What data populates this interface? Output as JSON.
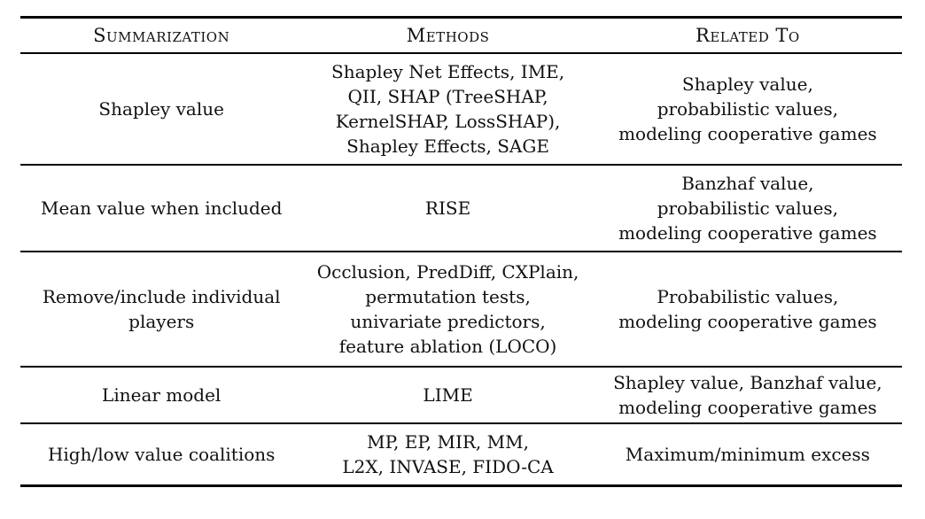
{
  "table": {
    "columns": [
      {
        "label": "Summarization"
      },
      {
        "label": "Methods"
      },
      {
        "label": "Related To"
      }
    ],
    "rows": [
      {
        "summarization": "Shapley value",
        "methods": "Shapley Net Effects, IME,\nQII, SHAP (TreeSHAP,\nKernelSHAP, LossSHAP),\nShapley Effects, SAGE",
        "related_to": "Shapley value,\nprobabilistic values,\nmodeling cooperative games"
      },
      {
        "summarization": "Mean value when included",
        "methods": "RISE",
        "related_to": "Banzhaf value,\nprobabilistic values,\nmodeling cooperative games"
      },
      {
        "summarization": "Remove/include individual\nplayers",
        "methods": "Occlusion, PredDiff, CXPlain,\npermutation tests,\nunivariate predictors,\nfeature ablation (LOCO)",
        "related_to": "Probabilistic values,\nmodeling cooperative games"
      },
      {
        "summarization": "Linear model",
        "methods": "LIME",
        "related_to": "Shapley value, Banzhaf value,\nmodeling cooperative games"
      },
      {
        "summarization": "High/low value coalitions",
        "methods": "MP, EP, MIR, MM,\nL2X, INVASE, FIDO-CA",
        "related_to": "Maximum/minimum excess"
      }
    ],
    "style": {
      "rule_color": "#000000",
      "text_color": "#111111",
      "background": "#ffffff"
    }
  }
}
